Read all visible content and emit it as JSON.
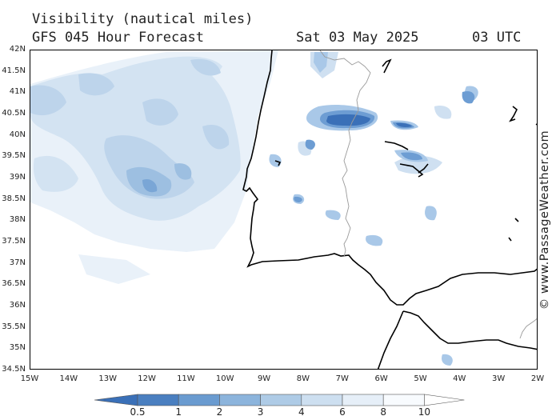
{
  "header": {
    "title": "Visibility (nautical miles)",
    "subtitle": "GFS 045 Hour Forecast",
    "date": "Sat 03 May 2025",
    "time": "03 UTC"
  },
  "credit": "© www.PassageWeather.com",
  "axes": {
    "lat_labels": [
      "42N",
      "41.5N",
      "41N",
      "40.5N",
      "40N",
      "39.5N",
      "39N",
      "38.5N",
      "38N",
      "37.5N",
      "37N",
      "36.5N",
      "36N",
      "35.5N",
      "35N",
      "34.5N"
    ],
    "lon_labels": [
      "15W",
      "14W",
      "13W",
      "12W",
      "11W",
      "10W",
      "9W",
      "8W",
      "7W",
      "6W",
      "5W",
      "4W",
      "3W",
      "2W"
    ],
    "lat_range": [
      34.5,
      42
    ],
    "lon_range": [
      -15,
      -2
    ]
  },
  "legend": {
    "labels": [
      "0.5",
      "1",
      "2",
      "3",
      "4",
      "6",
      "8",
      "10"
    ],
    "colors": [
      "#3a70b8",
      "#4a7fc0",
      "#6a9bd0",
      "#8cb4dc",
      "#aecbe6",
      "#cddff0",
      "#e6eff8",
      "#f8fbfe"
    ]
  },
  "colors": {
    "border": "#000000",
    "country_line": "#9a9a9a",
    "vis_0_5": "#3a70b8",
    "vis_1": "#4a7fc0",
    "vis_2": "#6a9bd0",
    "vis_3": "#8cb4dc",
    "vis_4": "#aecbe6",
    "vis_6": "#cddff0",
    "vis_8": "#e6eff8"
  }
}
